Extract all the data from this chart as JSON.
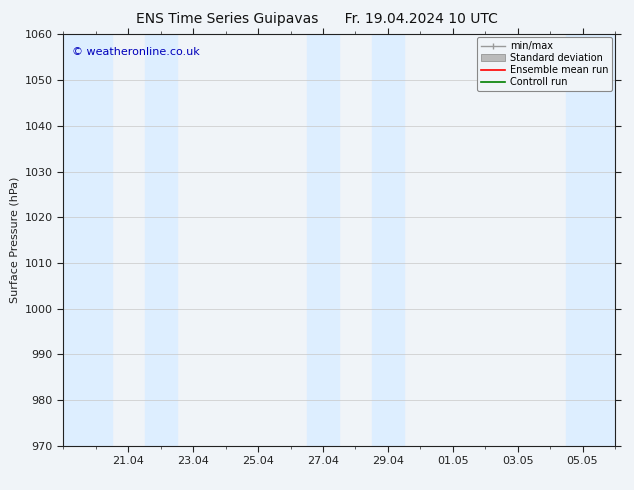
{
  "title": "ENS Time Series Guipavas      Fr. 19.04.2024 10 UTC",
  "ylabel": "Surface Pressure (hPa)",
  "ylim": [
    970,
    1060
  ],
  "yticks": [
    970,
    980,
    990,
    1000,
    1010,
    1020,
    1030,
    1040,
    1050,
    1060
  ],
  "xtick_labels": [
    "21.04",
    "23.04",
    "25.04",
    "27.04",
    "29.04",
    "01.05",
    "03.05",
    "05.05"
  ],
  "xtick_positions": [
    2,
    4,
    6,
    8,
    10,
    12,
    14,
    16
  ],
  "xlim": [
    0,
    17
  ],
  "shaded_bands": [
    {
      "xmin": 0.0,
      "xmax": 1.5
    },
    {
      "xmin": 2.5,
      "xmax": 3.5
    },
    {
      "xmin": 7.5,
      "xmax": 8.5
    },
    {
      "xmin": 9.5,
      "xmax": 10.5
    },
    {
      "xmin": 15.5,
      "xmax": 17.0
    }
  ],
  "band_color": "#ddeeff",
  "background_color": "#f0f4f8",
  "plot_bg_color": "#f0f4f8",
  "grid_color": "#c8c8c8",
  "watermark_text": "© weatheronline.co.uk",
  "watermark_color": "#0000bb",
  "legend_items": [
    {
      "label": "min/max",
      "color": "#999999",
      "style": "minmax"
    },
    {
      "label": "Standard deviation",
      "color": "#bbbbbb",
      "style": "stddev"
    },
    {
      "label": "Ensemble mean run",
      "color": "#ff0000",
      "style": "line"
    },
    {
      "label": "Controll run",
      "color": "#008000",
      "style": "line"
    }
  ],
  "tick_color": "#222222",
  "font_size": 8,
  "title_font_size": 10,
  "ylabel_fontsize": 8
}
